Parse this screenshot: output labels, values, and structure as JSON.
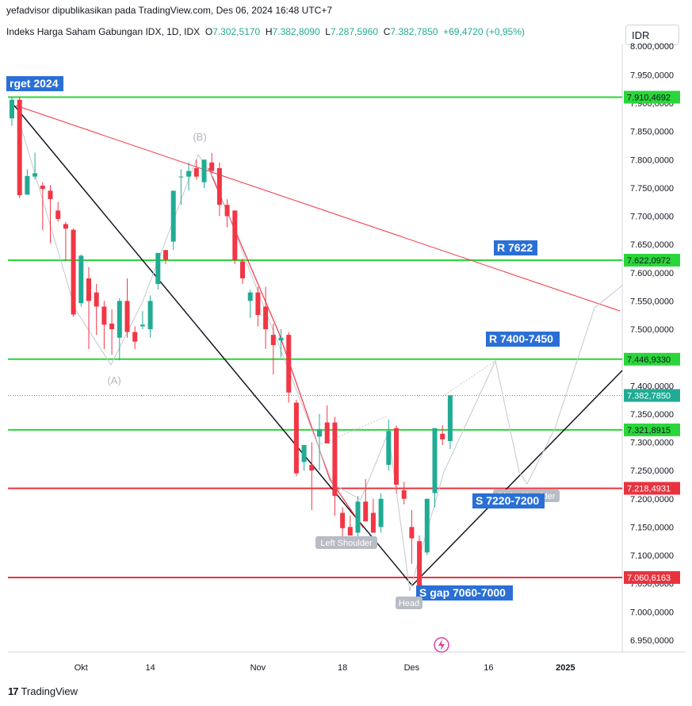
{
  "attribution": "yefadvisor dipublikasikan pada TradingView.com, Des 06, 2024 16:48 UTC+7",
  "header": {
    "title": "Indeks Harga Saham Gabungan IDX, 1D, IDX",
    "open_label": "O",
    "open": "7.302,5170",
    "high_label": "H",
    "high": "7.382,8090",
    "low_label": "L",
    "low": "7.287,5960",
    "close_label": "C",
    "close": "7.382,7850",
    "change": "+69,4720 (+0,95%)"
  },
  "currency": "IDR",
  "footer": {
    "brand": "TradingView",
    "mark": "17"
  },
  "colors": {
    "up": "#22ab94",
    "down": "#f23645",
    "resistance": "#2ad63a",
    "support": "#e8333f",
    "label_blue": "#2a6fd6"
  },
  "chart_data": {
    "type": "candlestick",
    "y_axis": {
      "min": 6925,
      "max": 8000,
      "ticks": [
        7950,
        7900,
        7850,
        7800,
        7750,
        7700,
        7650,
        7600,
        7550,
        7500,
        7450,
        7400,
        7350,
        7300,
        7250,
        7200,
        7150,
        7100,
        7050,
        7000,
        6950
      ],
      "tick_labels": [
        "7.950,0000",
        "7.900,0000",
        "7.850,0000",
        "7.800,0000",
        "7.750,0000",
        "7.700,0000",
        "7.650,0000",
        "7.600,0000",
        "7.550,0000",
        "7.500,0000",
        "7.450,0000",
        "7.400,0000",
        "7.350,0000",
        "7.300,0000",
        "7.250,0000",
        "7.200,0000",
        "7.150,0000",
        "7.100,0000",
        "7.050,0000",
        "7.000,0000",
        "6.950,0000"
      ],
      "top_label": "8.000,0000"
    },
    "x_ticks": [
      {
        "label": "Okt",
        "index": 9,
        "bold": false
      },
      {
        "label": "14",
        "index": 18,
        "bold": false
      },
      {
        "label": "Nov",
        "index": 32,
        "bold": false
      },
      {
        "label": "18",
        "index": 43,
        "bold": false
      },
      {
        "label": "Des",
        "index": 52,
        "bold": false
      },
      {
        "label": "16",
        "index": 62,
        "bold": false
      },
      {
        "label": "2025",
        "index": 72,
        "bold": true
      }
    ],
    "candles": [
      [
        7873,
        7912,
        7860,
        7906
      ],
      [
        7906,
        7912,
        7732,
        7737
      ],
      [
        7738,
        7783,
        7738,
        7771
      ],
      [
        7770,
        7812,
        7765,
        7776
      ],
      [
        7754,
        7760,
        7675,
        7748
      ],
      [
        7745,
        7755,
        7652,
        7730
      ],
      [
        7710,
        7725,
        7690,
        7695
      ],
      [
        7686,
        7690,
        7620,
        7678
      ],
      [
        7676,
        7678,
        7522,
        7526
      ],
      [
        7546,
        7632,
        7540,
        7630
      ],
      [
        7590,
        7610,
        7465,
        7550
      ],
      [
        7565,
        7580,
        7490,
        7540
      ],
      [
        7540,
        7550,
        7465,
        7508
      ],
      [
        7510,
        7535,
        7455,
        7500
      ],
      [
        7485,
        7555,
        7445,
        7550
      ],
      [
        7550,
        7590,
        7485,
        7495
      ],
      [
        7495,
        7505,
        7465,
        7478
      ],
      [
        7505,
        7532,
        7500,
        7508
      ],
      [
        7500,
        7560,
        7485,
        7550
      ],
      [
        7580,
        7630,
        7570,
        7635
      ],
      [
        7640,
        7640,
        7615,
        7623
      ],
      [
        7655,
        7737,
        7640,
        7745
      ],
      [
        7770,
        7783,
        7720,
        7770
      ],
      [
        7770,
        7795,
        7745,
        7780
      ],
      [
        7785,
        7800,
        7765,
        7770
      ],
      [
        7760,
        7800,
        7750,
        7800
      ],
      [
        7795,
        7812,
        7775,
        7780
      ],
      [
        7785,
        7795,
        7700,
        7720
      ],
      [
        7720,
        7730,
        7680,
        7700
      ],
      [
        7710,
        7710,
        7615,
        7622
      ],
      [
        7620,
        7625,
        7580,
        7590
      ],
      [
        7550,
        7570,
        7520,
        7565
      ],
      [
        7565,
        7575,
        7505,
        7525
      ],
      [
        7540,
        7575,
        7465,
        7500
      ],
      [
        7490,
        7510,
        7420,
        7472
      ],
      [
        7480,
        7500,
        7450,
        7485
      ],
      [
        7490,
        7495,
        7370,
        7388
      ],
      [
        7370,
        7375,
        7240,
        7245
      ],
      [
        7265,
        7290,
        7250,
        7295
      ],
      [
        7260,
        7300,
        7180,
        7250
      ],
      [
        7310,
        7350,
        7250,
        7322
      ],
      [
        7335,
        7365,
        7300,
        7298
      ],
      [
        7335,
        7345,
        7170,
        7205
      ],
      [
        7175,
        7185,
        7128,
        7148
      ],
      [
        7150,
        7170,
        7140,
        7135
      ],
      [
        7140,
        7205,
        7130,
        7195
      ],
      [
        7195,
        7235,
        7165,
        7160
      ],
      [
        7175,
        7200,
        7140,
        7140
      ],
      [
        7150,
        7210,
        7140,
        7200
      ],
      [
        7260,
        7340,
        7250,
        7320
      ],
      [
        7325,
        7330,
        7210,
        7225
      ],
      [
        7215,
        7230,
        7190,
        7200
      ],
      [
        7150,
        7180,
        7085,
        7130
      ],
      [
        7125,
        7135,
        7040,
        7042
      ],
      [
        7105,
        7200,
        7100,
        7200
      ],
      [
        7210,
        7325,
        7185,
        7325
      ],
      [
        7315,
        7330,
        7295,
        7305
      ],
      [
        7302,
        7383,
        7288,
        7383
      ]
    ],
    "horizontal_levels": [
      {
        "value": 7910.4692,
        "label": "7.910,4692",
        "kind": "resistance"
      },
      {
        "value": 7622.0972,
        "label": "7.622,0972",
        "kind": "resistance"
      },
      {
        "value": 7446.933,
        "label": "7.446,9330",
        "kind": "resistance"
      },
      {
        "value": 7321.8915,
        "label": "7.321,8915",
        "kind": "resistance"
      },
      {
        "value": 7218.4931,
        "label": "7.218,4931",
        "kind": "support"
      },
      {
        "value": 7060.6163,
        "label": "7.060,6163",
        "kind": "support"
      }
    ],
    "last_price": {
      "value": 7382.785,
      "label": "7.382,7850"
    },
    "annotations": {
      "target": "rget 2024",
      "r7622": "R 7622",
      "r7400": "R 7400-7450",
      "s7220": "S 7220-7200",
      "sgap": "S gap 7060-7000",
      "wave_a": "(A)",
      "wave_b": "(B)",
      "left_shoulder": "Left Shoulder",
      "head": "Head",
      "right_shoulder": "Right Shoulder"
    }
  }
}
